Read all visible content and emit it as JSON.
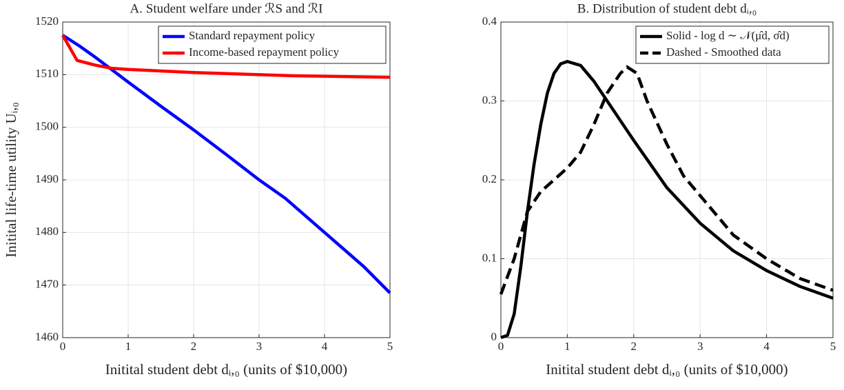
{
  "chart_data": [
    {
      "type": "line",
      "title": "A. Student welfare under ℛS and ℛI",
      "xlabel": "Initital student debt dᵢ,₀ (units of $10,000)",
      "ylabel": "Initital life-time utility Uᵢ,₀",
      "xlim": [
        0,
        5
      ],
      "xticks": [
        0,
        1,
        2,
        3,
        4,
        5
      ],
      "ylim": [
        1460,
        1520
      ],
      "yticks": [
        1460,
        1470,
        1480,
        1490,
        1500,
        1510,
        1520
      ],
      "grid": true,
      "legend": "northeast",
      "series": [
        {
          "name": "Standard repayment policy",
          "color": "#0000ff",
          "dash": false,
          "x": [
            0,
            0.25,
            0.5,
            1,
            1.5,
            2,
            2.5,
            3,
            3.4,
            4,
            4.6,
            5
          ],
          "values": [
            1517.5,
            1515.5,
            1513.3,
            1508.6,
            1504,
            1499.5,
            1494.8,
            1490,
            1486.5,
            1480,
            1473.5,
            1468.5
          ]
        },
        {
          "name": "Income-based repayment policy",
          "color": "#ff0000",
          "dash": false,
          "x": [
            0,
            0.22,
            0.5,
            0.75,
            1,
            1.5,
            2,
            2.5,
            3,
            3.5,
            4,
            4.5,
            5
          ],
          "values": [
            1517.5,
            1512.7,
            1511.8,
            1511.2,
            1511,
            1510.7,
            1510.4,
            1510.2,
            1510,
            1509.8,
            1509.7,
            1509.6,
            1509.5
          ]
        }
      ]
    },
    {
      "type": "line",
      "title": "B. Distribution of student debt dᵢ,₀",
      "xlabel": "Initital student debt dᵢ,₀ (units of $10,000)",
      "xlim": [
        0,
        5
      ],
      "xticks": [
        0,
        1,
        2,
        3,
        4,
        5
      ],
      "ylim": [
        0,
        0.4
      ],
      "yticks": [
        0,
        0.1,
        0.2,
        0.3,
        0.4
      ],
      "grid": true,
      "legend": "northeast",
      "series": [
        {
          "name": "Solid - log d ∼ 𝒩(μ̂d, σ̂d)",
          "color": "#000000",
          "dash": false,
          "x": [
            0,
            0.1,
            0.2,
            0.3,
            0.4,
            0.5,
            0.6,
            0.7,
            0.8,
            0.9,
            1,
            1.2,
            1.4,
            1.6,
            1.8,
            2,
            2.25,
            2.5,
            3,
            3.5,
            4,
            4.5,
            5
          ],
          "values": [
            0,
            0.003,
            0.03,
            0.09,
            0.16,
            0.22,
            0.27,
            0.31,
            0.335,
            0.347,
            0.35,
            0.345,
            0.325,
            0.3,
            0.275,
            0.25,
            0.22,
            0.19,
            0.145,
            0.11,
            0.085,
            0.065,
            0.05
          ]
        },
        {
          "name": "Dashed - Smoothed data",
          "color": "#000000",
          "dash": true,
          "x": [
            0,
            0.2,
            0.4,
            0.6,
            0.8,
            1,
            1.2,
            1.4,
            1.6,
            1.8,
            1.9,
            2.05,
            2.2,
            2.5,
            2.75,
            3,
            3.5,
            4,
            4.5,
            5
          ],
          "values": [
            0.055,
            0.1,
            0.16,
            0.185,
            0.2,
            0.215,
            0.235,
            0.27,
            0.31,
            0.335,
            0.343,
            0.335,
            0.3,
            0.245,
            0.205,
            0.18,
            0.13,
            0.1,
            0.075,
            0.06
          ]
        }
      ]
    }
  ]
}
